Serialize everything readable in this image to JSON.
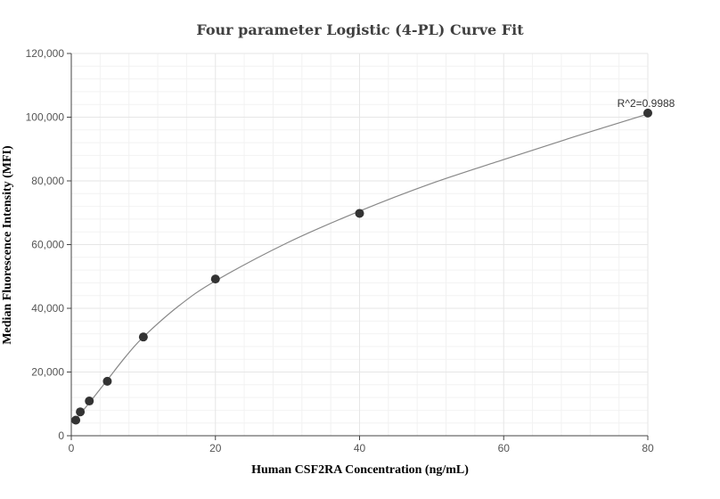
{
  "chart_data": {
    "type": "scatter",
    "title": "Four parameter Logistic (4-PL) Curve Fit",
    "xlabel": "Human CSF2RA Concentration (ng/mL)",
    "ylabel": "Median Fluorescence Intensity (MFI)",
    "xlim": [
      0,
      80
    ],
    "ylim": [
      0,
      120000
    ],
    "x_ticks": [
      0,
      20,
      40,
      60,
      80
    ],
    "y_ticks": [
      0,
      20000,
      40000,
      60000,
      80000,
      100000,
      120000
    ],
    "x_tick_labels": [
      "0",
      "20",
      "40",
      "60",
      "80"
    ],
    "y_tick_labels": [
      "0",
      "20,000",
      "40,000",
      "60,000",
      "80,000",
      "100,000",
      "120,000"
    ],
    "grid": true,
    "points": [
      {
        "x": 0.625,
        "y": 4900
      },
      {
        "x": 1.25,
        "y": 7500
      },
      {
        "x": 2.5,
        "y": 10900
      },
      {
        "x": 5,
        "y": 17100
      },
      {
        "x": 10,
        "y": 31000
      },
      {
        "x": 20,
        "y": 49200
      },
      {
        "x": 40,
        "y": 69800
      },
      {
        "x": 80,
        "y": 101300
      }
    ],
    "fit_curve": {
      "model": "4PL",
      "x": [
        0,
        0.625,
        1.25,
        2.5,
        5,
        7.5,
        10,
        15,
        20,
        30,
        40,
        50,
        60,
        70,
        80
      ],
      "y": [
        3900,
        5300,
        6900,
        10300,
        17500,
        24700,
        31000,
        40900,
        48600,
        60600,
        70500,
        79200,
        86700,
        94000,
        101000
      ]
    },
    "annotation": "R^2=0.9988",
    "colors": {
      "point": "#333333",
      "curve": "#888888",
      "grid": "#e6e6e6",
      "axis": "#444444"
    }
  }
}
